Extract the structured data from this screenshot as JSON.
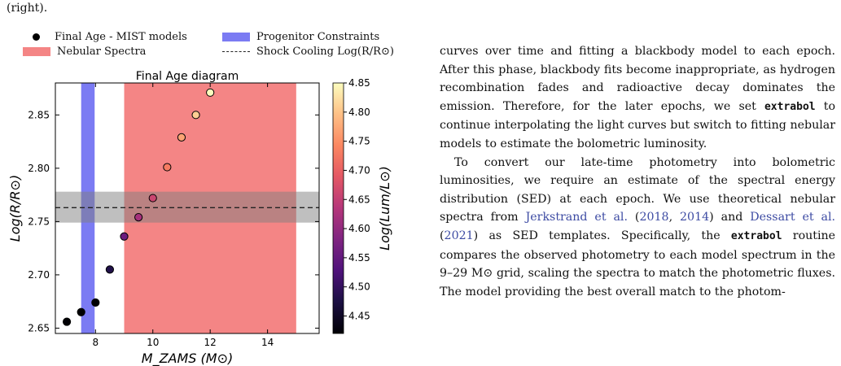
{
  "page": {
    "fragment_top": "(right)."
  },
  "legend": {
    "items": [
      {
        "label": "Final Age - MIST models",
        "kind": "dot",
        "color": "#000000"
      },
      {
        "label": "Progenitor Constraints",
        "kind": "rect",
        "color": "#7b7bf3"
      },
      {
        "label": "Nebular Spectra",
        "kind": "rect",
        "color": "#f48585"
      },
      {
        "label": "Shock Cooling Log(R/R⊙)",
        "kind": "dash",
        "color": "#222222"
      }
    ]
  },
  "chart_data": {
    "type": "scatter",
    "title": "Final Age diagram",
    "xlabel": "M_ZAMS (M⊙)",
    "ylabel": "Log(R/R⊙)",
    "colorbar_label": "Log(Lum/L⊙)",
    "xlim": [
      6.6,
      15.8
    ],
    "ylim": [
      2.645,
      2.88
    ],
    "xticks": [
      8,
      10,
      12,
      14
    ],
    "yticks": [
      2.65,
      2.7,
      2.75,
      2.8,
      2.85
    ],
    "colorbar_range": [
      4.42,
      4.85
    ],
    "colorbar_ticks": [
      4.45,
      4.5,
      4.55,
      4.6,
      4.65,
      4.7,
      4.75,
      4.8,
      4.85
    ],
    "points": [
      {
        "x": 7.0,
        "y": 2.656,
        "lum": 4.25
      },
      {
        "x": 7.5,
        "y": 2.665,
        "lum": 4.28
      },
      {
        "x": 8.0,
        "y": 2.674,
        "lum": 4.32
      },
      {
        "x": 8.5,
        "y": 2.705,
        "lum": 4.48
      },
      {
        "x": 9.0,
        "y": 2.736,
        "lum": 4.56
      },
      {
        "x": 9.5,
        "y": 2.754,
        "lum": 4.62
      },
      {
        "x": 10.0,
        "y": 2.772,
        "lum": 4.66
      },
      {
        "x": 10.5,
        "y": 2.801,
        "lum": 4.73
      },
      {
        "x": 11.0,
        "y": 2.829,
        "lum": 4.77
      },
      {
        "x": 11.5,
        "y": 2.85,
        "lum": 4.81
      },
      {
        "x": 12.0,
        "y": 2.871,
        "lum": 4.85
      }
    ],
    "progenitor_band": [
      7.5,
      7.97
    ],
    "nebular_band": [
      9.0,
      15.0
    ],
    "shock_cooling": {
      "value": 2.763,
      "low": 2.749,
      "high": 2.778
    }
  },
  "body_text": {
    "p1": "curves over time and fitting a blackbody model to each epoch. After this phase, blackbody fits become inappropriate, as hydrogen recombination fades and radioactive decay dominates the emission. Therefore, for the later epochs, we set",
    "p1_code": "extrabol",
    "p1_tail": "to continue interpolating the light curves but switch to fitting nebular models to estimate the bolometric luminosity.",
    "p2_a": "To convert our late-time photometry into bolometric luminosities, we require an estimate of the spectral energy distribution (SED) at each epoch. We use theoretical nebular spectra from",
    "cite1": "Jerkstrand et al.",
    "cite1_y1": "2018",
    "cite1_y2": "2014",
    "p2_b": "and",
    "cite2": "Dessart et al.",
    "cite2_y": "2021",
    "p2_c": "as SED templates. Specifically, the",
    "p2_code": "extrabol",
    "p2_d": "routine compares the observed photometry to each model spectrum in the 9–29 M⊙ grid, scaling the spectra to match the photometric fluxes. The model providing the best overall match to the photom-"
  }
}
